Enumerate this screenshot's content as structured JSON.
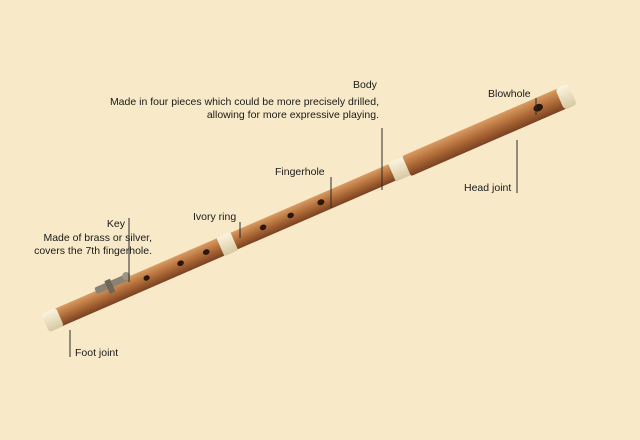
{
  "labels": {
    "body": {
      "title": "Body",
      "line1": "Made in four pieces which could be more precisely drilled,",
      "line2": "allowing for more expressive playing."
    },
    "blowhole": "Blowhole",
    "fingerhole": "Fingerhole",
    "head_joint": "Head joint",
    "ivory_ring": "Ivory ring",
    "key": {
      "title": "Key",
      "line1": "Made of brass or silver,",
      "line2": "covers the 7th fingerhole."
    },
    "foot_joint": "Foot joint"
  },
  "colors": {
    "background": "#f8eac8",
    "wood": "#b06d3a",
    "ivory": "#efe4c4"
  }
}
